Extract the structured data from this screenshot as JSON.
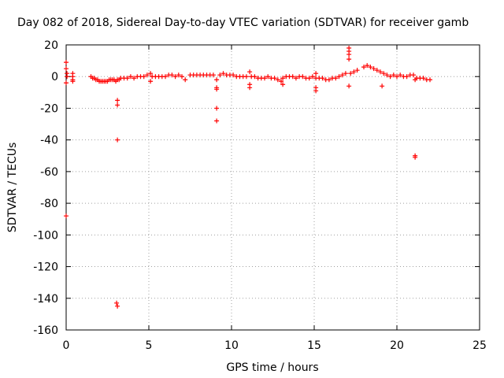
{
  "chart_data": {
    "type": "scatter",
    "title": "Day 082 of 2018, Sidereal Day-to-day VTEC variation (SDTVAR) for receiver gamb",
    "xlabel": "GPS time / hours",
    "ylabel": "SDTVAR / TECUs",
    "xlim": [
      0,
      25
    ],
    "ylim": [
      -160,
      20
    ],
    "xticks": [
      0,
      5,
      10,
      15,
      20,
      25
    ],
    "yticks": [
      20,
      0,
      -20,
      -40,
      -60,
      -80,
      -100,
      -120,
      -140,
      -160
    ],
    "xtick_labels": [
      "0",
      "5",
      "10",
      "15",
      "20",
      "25"
    ],
    "ytick_labels": [
      "20",
      "0",
      "-20",
      "-40",
      "-60",
      "-80",
      "-100",
      "-120",
      "-140",
      "-160"
    ],
    "grid": true,
    "marker": "+",
    "color": "#ff0000",
    "series": [
      {
        "name": "SDTVAR",
        "x": [
          0.0,
          0.0,
          0.0,
          0.05,
          0.05,
          0.0,
          0.4,
          0.4,
          0.4,
          0.4,
          1.5,
          1.6,
          1.7,
          1.8,
          1.9,
          2.0,
          2.1,
          2.2,
          2.3,
          2.4,
          2.5,
          2.6,
          2.7,
          2.8,
          2.9,
          3.0,
          3.1,
          3.2,
          3.1,
          3.1,
          3.1,
          3.05,
          3.1,
          3.3,
          3.5,
          3.7,
          3.9,
          4.1,
          4.3,
          4.5,
          4.7,
          4.9,
          5.1,
          5.1,
          5.2,
          5.4,
          5.6,
          5.8,
          6.0,
          6.2,
          6.4,
          6.6,
          6.8,
          7.0,
          7.2,
          7.5,
          7.7,
          7.9,
          8.1,
          8.3,
          8.5,
          8.7,
          8.9,
          9.1,
          9.1,
          9.1,
          9.1,
          9.1,
          9.3,
          9.5,
          9.7,
          9.9,
          10.1,
          10.3,
          10.5,
          10.7,
          10.9,
          11.1,
          11.1,
          11.1,
          11.2,
          11.4,
          11.6,
          11.8,
          12.0,
          12.2,
          12.4,
          12.6,
          12.8,
          13.0,
          13.1,
          13.1,
          13.3,
          13.5,
          13.7,
          13.9,
          14.1,
          14.3,
          14.5,
          14.7,
          14.9,
          15.1,
          15.1,
          15.1,
          15.1,
          15.3,
          15.5,
          15.7,
          15.9,
          16.1,
          16.3,
          16.5,
          16.7,
          16.9,
          17.1,
          17.1,
          17.1,
          17.1,
          17.1,
          17.2,
          17.4,
          17.6,
          18.0,
          18.2,
          18.4,
          18.6,
          18.8,
          19.0,
          19.1,
          19.2,
          19.4,
          19.6,
          19.8,
          20.0,
          20.2,
          20.4,
          20.6,
          20.8,
          21.0,
          21.1,
          21.1,
          21.1,
          21.2,
          21.4,
          21.6,
          21.8,
          22.0
        ],
        "y": [
          9,
          5,
          -4,
          2,
          0,
          -88,
          2,
          0,
          -2,
          -3,
          0,
          -1,
          -1,
          -2,
          -2,
          -3,
          -3,
          -3,
          -3,
          -3,
          -3,
          -2,
          -2,
          -2,
          -2,
          -3,
          -2,
          -2,
          -15,
          -18,
          -40,
          -143,
          -145,
          -1,
          -1,
          -1,
          0,
          -1,
          0,
          0,
          0,
          1,
          2,
          -3,
          0,
          0,
          0,
          0,
          0,
          1,
          1,
          0,
          1,
          0,
          -2,
          1,
          1,
          1,
          1,
          1,
          1,
          1,
          1,
          -2,
          -7,
          -8,
          -20,
          -28,
          1,
          2,
          1,
          1,
          1,
          0,
          0,
          0,
          0,
          3,
          -5,
          -7,
          0,
          0,
          -1,
          -1,
          -1,
          0,
          -1,
          -1,
          -2,
          -3,
          -1,
          -5,
          0,
          0,
          0,
          -1,
          0,
          0,
          -1,
          -1,
          0,
          2,
          -1,
          -7,
          -9,
          -1,
          -1,
          -2,
          -2,
          -1,
          -1,
          0,
          1,
          2,
          18,
          16,
          14,
          11,
          -6,
          2,
          3,
          4,
          6,
          7,
          6,
          5,
          4,
          3,
          -6,
          2,
          1,
          0,
          1,
          0,
          1,
          0,
          0,
          1,
          1,
          -2,
          -50,
          -51,
          -1,
          -1,
          -1,
          -2,
          -2
        ]
      }
    ]
  }
}
